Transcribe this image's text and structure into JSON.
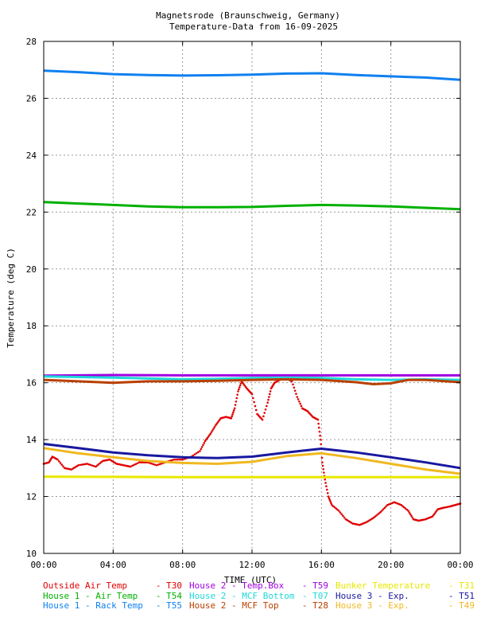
{
  "chart_data": {
    "type": "line",
    "title": "Magnetsrode (Braunschweig, Germany)",
    "subtitle": "Temperature-Data from 16-09-2025",
    "xlabel": "TIME (UTC)",
    "ylabel": "Temperature (deg C)",
    "xlim": [
      0,
      24
    ],
    "ylim": [
      10,
      28
    ],
    "grid": true,
    "x_ticks": [
      0,
      4,
      8,
      12,
      16,
      20,
      24
    ],
    "x_tick_labels": [
      "00:00",
      "04:00",
      "08:00",
      "12:00",
      "16:00",
      "20:00",
      "00:00"
    ],
    "y_ticks": [
      10,
      12,
      14,
      16,
      18,
      20,
      22,
      24,
      26,
      28
    ],
    "y_tick_labels": [
      "10",
      "12",
      "14",
      "16",
      "18",
      "20",
      "22",
      "24",
      "26",
      "28"
    ],
    "legend_position": "bottom",
    "series": [
      {
        "name": "Outside Air Temp",
        "code": "T30",
        "color": "#e00000",
        "style": "points",
        "points": [
          [
            0,
            13.15
          ],
          [
            0.3,
            13.2
          ],
          [
            0.5,
            13.4
          ],
          [
            0.8,
            13.3
          ],
          [
            1.2,
            13.0
          ],
          [
            1.6,
            12.95
          ],
          [
            2.0,
            13.1
          ],
          [
            2.5,
            13.15
          ],
          [
            3.0,
            13.05
          ],
          [
            3.4,
            13.25
          ],
          [
            3.8,
            13.3
          ],
          [
            4.2,
            13.15
          ],
          [
            4.6,
            13.1
          ],
          [
            5.0,
            13.05
          ],
          [
            5.5,
            13.2
          ],
          [
            6.0,
            13.2
          ],
          [
            6.5,
            13.1
          ],
          [
            7.0,
            13.2
          ],
          [
            7.5,
            13.3
          ],
          [
            8.0,
            13.3
          ],
          [
            8.5,
            13.4
          ],
          [
            9.0,
            13.6
          ],
          [
            9.3,
            13.95
          ],
          [
            9.6,
            14.2
          ],
          [
            9.9,
            14.5
          ],
          [
            10.2,
            14.75
          ],
          [
            10.5,
            14.8
          ],
          [
            10.8,
            14.75
          ],
          [
            11.0,
            15.1
          ],
          [
            11.2,
            15.7
          ],
          [
            11.4,
            16.05
          ],
          [
            11.7,
            15.8
          ],
          [
            12.0,
            15.6
          ],
          [
            12.3,
            14.9
          ],
          [
            12.6,
            14.7
          ],
          [
            12.9,
            15.3
          ],
          [
            13.1,
            15.8
          ],
          [
            13.3,
            16.0
          ],
          [
            13.6,
            16.1
          ],
          [
            14.0,
            16.15
          ],
          [
            14.3,
            16.05
          ],
          [
            14.6,
            15.5
          ],
          [
            14.9,
            15.1
          ],
          [
            15.2,
            15.0
          ],
          [
            15.5,
            14.8
          ],
          [
            15.8,
            14.7
          ],
          [
            15.95,
            14.0
          ],
          [
            16.05,
            13.2
          ],
          [
            16.2,
            12.6
          ],
          [
            16.4,
            12.0
          ],
          [
            16.6,
            11.7
          ],
          [
            17.0,
            11.5
          ],
          [
            17.4,
            11.2
          ],
          [
            17.8,
            11.05
          ],
          [
            18.2,
            11.0
          ],
          [
            18.6,
            11.1
          ],
          [
            19.0,
            11.25
          ],
          [
            19.4,
            11.45
          ],
          [
            19.8,
            11.7
          ],
          [
            20.2,
            11.8
          ],
          [
            20.6,
            11.7
          ],
          [
            21.0,
            11.5
          ],
          [
            21.3,
            11.2
          ],
          [
            21.6,
            11.15
          ],
          [
            22.0,
            11.2
          ],
          [
            22.4,
            11.3
          ],
          [
            22.7,
            11.55
          ],
          [
            23.0,
            11.6
          ],
          [
            23.4,
            11.65
          ],
          [
            23.7,
            11.7
          ],
          [
            24.0,
            11.75
          ]
        ]
      },
      {
        "name": "House 1 - Air  Temp",
        "code": "T54",
        "color": "#00b000",
        "style": "line",
        "points": [
          [
            0,
            22.35
          ],
          [
            2,
            22.3
          ],
          [
            4,
            22.25
          ],
          [
            6,
            22.2
          ],
          [
            8,
            22.17
          ],
          [
            10,
            22.17
          ],
          [
            12,
            22.18
          ],
          [
            14,
            22.22
          ],
          [
            16,
            22.25
          ],
          [
            18,
            22.23
          ],
          [
            20,
            22.2
          ],
          [
            22,
            22.15
          ],
          [
            24,
            22.1
          ]
        ]
      },
      {
        "name": "House 1 - Rack Temp",
        "code": "T55",
        "color": "#1080f0",
        "style": "line",
        "points": [
          [
            0,
            26.97
          ],
          [
            2,
            26.92
          ],
          [
            4,
            26.85
          ],
          [
            6,
            26.82
          ],
          [
            8,
            26.8
          ],
          [
            10,
            26.81
          ],
          [
            12,
            26.83
          ],
          [
            14,
            26.87
          ],
          [
            16,
            26.88
          ],
          [
            18,
            26.82
          ],
          [
            20,
            26.77
          ],
          [
            22,
            26.73
          ],
          [
            24,
            26.65
          ]
        ]
      },
      {
        "name": "House 2 - Temp.Box",
        "code": "T59",
        "color": "#a000e0",
        "style": "line",
        "points": [
          [
            0,
            16.25
          ],
          [
            4,
            16.27
          ],
          [
            8,
            16.26
          ],
          [
            12,
            16.26
          ],
          [
            16,
            16.26
          ],
          [
            20,
            16.26
          ],
          [
            24,
            16.26
          ]
        ]
      },
      {
        "name": "House 2 - MCF Bottom",
        "code": "T07",
        "color": "#20d8d8",
        "style": "line",
        "points": [
          [
            0,
            16.22
          ],
          [
            4,
            16.18
          ],
          [
            6,
            16.15
          ],
          [
            8,
            16.12
          ],
          [
            10,
            16.14
          ],
          [
            12,
            16.17
          ],
          [
            14,
            16.18
          ],
          [
            16,
            16.17
          ],
          [
            18,
            16.12
          ],
          [
            20,
            16.1
          ],
          [
            22,
            16.12
          ],
          [
            24,
            16.1
          ]
        ]
      },
      {
        "name": "House 2 - MCF Top",
        "code": "T28",
        "color": "#b84000",
        "style": "line",
        "points": [
          [
            0,
            16.1
          ],
          [
            2,
            16.05
          ],
          [
            4,
            16.0
          ],
          [
            6,
            16.05
          ],
          [
            8,
            16.05
          ],
          [
            10,
            16.07
          ],
          [
            12,
            16.1
          ],
          [
            14,
            16.12
          ],
          [
            16,
            16.1
          ],
          [
            18,
            16.02
          ],
          [
            19,
            15.95
          ],
          [
            20,
            15.98
          ],
          [
            21,
            16.1
          ],
          [
            22,
            16.1
          ],
          [
            24,
            16.02
          ]
        ]
      },
      {
        "name": "Bunker Temperature",
        "code": "T31",
        "color": "#e8e800",
        "style": "line",
        "points": [
          [
            0,
            12.7
          ],
          [
            4,
            12.69
          ],
          [
            8,
            12.68
          ],
          [
            12,
            12.68
          ],
          [
            16,
            12.68
          ],
          [
            20,
            12.68
          ],
          [
            24,
            12.68
          ]
        ]
      },
      {
        "name": "House 3 - Exp.",
        "code": "T51",
        "color": "#1818a0",
        "style": "line",
        "points": [
          [
            0,
            13.85
          ],
          [
            2,
            13.7
          ],
          [
            4,
            13.55
          ],
          [
            6,
            13.45
          ],
          [
            8,
            13.38
          ],
          [
            10,
            13.35
          ],
          [
            12,
            13.4
          ],
          [
            14,
            13.55
          ],
          [
            16,
            13.68
          ],
          [
            18,
            13.55
          ],
          [
            20,
            13.38
          ],
          [
            22,
            13.2
          ],
          [
            24,
            13.0
          ]
        ]
      },
      {
        "name": "House 3 - Exp.",
        "code": "T49",
        "color": "#f0b820",
        "style": "line",
        "points": [
          [
            0,
            13.7
          ],
          [
            2,
            13.52
          ],
          [
            4,
            13.38
          ],
          [
            6,
            13.25
          ],
          [
            8,
            13.18
          ],
          [
            10,
            13.15
          ],
          [
            12,
            13.22
          ],
          [
            14,
            13.42
          ],
          [
            16,
            13.52
          ],
          [
            18,
            13.35
          ],
          [
            20,
            13.15
          ],
          [
            22,
            12.95
          ],
          [
            24,
            12.8
          ]
        ]
      }
    ]
  }
}
